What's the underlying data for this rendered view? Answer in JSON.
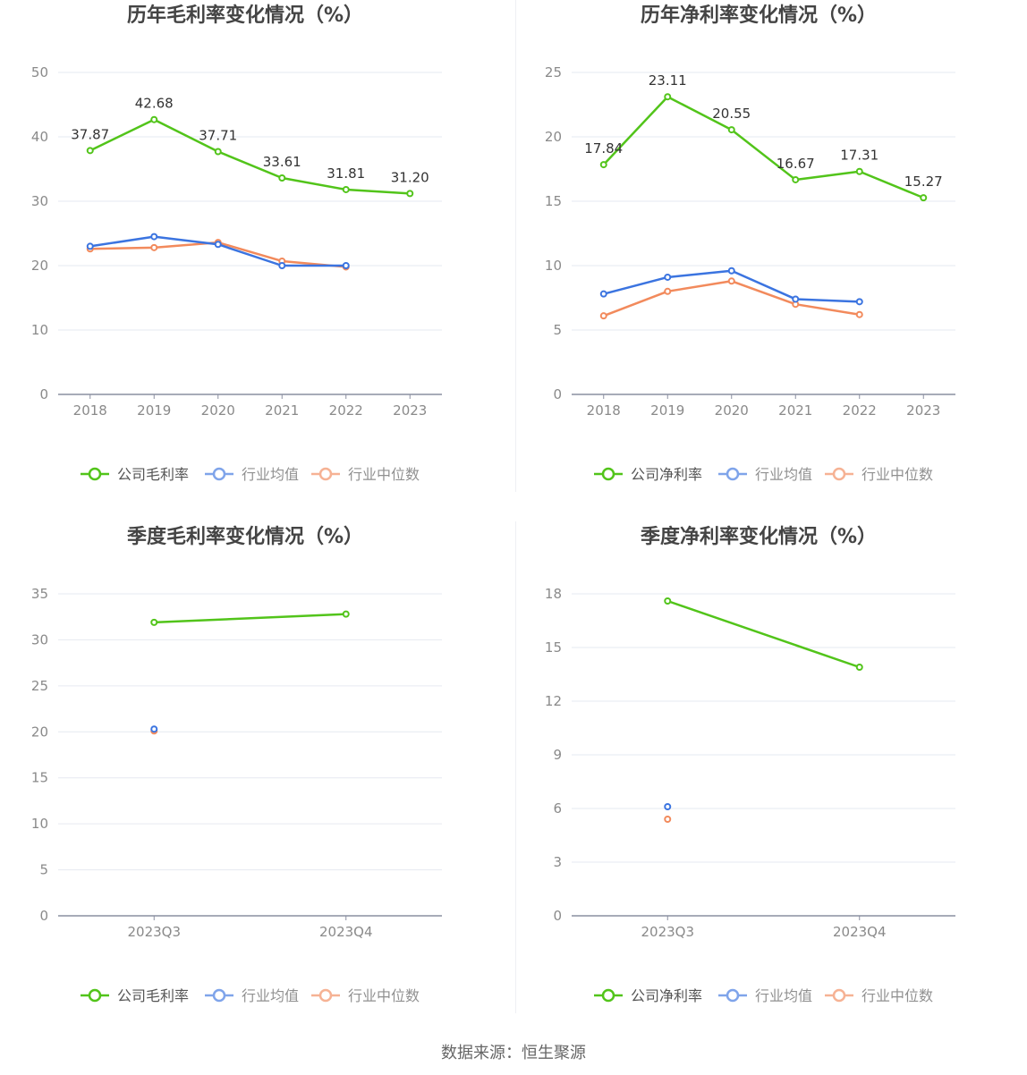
{
  "legend_avg": "行业均值",
  "legend_median": "行业中位数",
  "source_text": "数据来源：恒生聚源",
  "colors": {
    "company": "#52c41a",
    "avg": "#3b74e0",
    "median": "#f28a5c",
    "grid": "#e6e9f0",
    "axis": "#8a8fa0"
  },
  "chart_data": [
    {
      "type": "line",
      "title": "历年毛利率变化情况（%）",
      "legend_company": "公司毛利率",
      "categories": [
        "2018",
        "2019",
        "2020",
        "2021",
        "2022",
        "2023"
      ],
      "ylim": [
        0,
        50
      ],
      "yticks": [
        "0",
        "10",
        "20",
        "30",
        "40",
        "50"
      ],
      "series": [
        {
          "name": "公司毛利率",
          "key": "company",
          "values": [
            37.87,
            42.68,
            37.71,
            33.61,
            31.81,
            31.2
          ],
          "labels": [
            "37.87",
            "42.68",
            "37.71",
            "33.61",
            "31.81",
            "31.20"
          ]
        },
        {
          "name": "行业均值",
          "key": "avg",
          "values": [
            23.0,
            24.5,
            23.3,
            20.0,
            20.0,
            null
          ]
        },
        {
          "name": "行业中位数",
          "key": "median",
          "values": [
            22.6,
            22.8,
            23.6,
            20.7,
            19.8,
            null
          ]
        }
      ]
    },
    {
      "type": "line",
      "title": "历年净利率变化情况（%）",
      "legend_company": "公司净利率",
      "categories": [
        "2018",
        "2019",
        "2020",
        "2021",
        "2022",
        "2023"
      ],
      "ylim": [
        0,
        25
      ],
      "yticks": [
        "0",
        "5",
        "10",
        "15",
        "20",
        "25"
      ],
      "series": [
        {
          "name": "公司净利率",
          "key": "company",
          "values": [
            17.84,
            23.11,
            20.55,
            16.67,
            17.31,
            15.27
          ],
          "labels": [
            "17.84",
            "23.11",
            "20.55",
            "16.67",
            "17.31",
            "15.27"
          ]
        },
        {
          "name": "行业均值",
          "key": "avg",
          "values": [
            7.8,
            9.1,
            9.6,
            7.4,
            7.2,
            null
          ]
        },
        {
          "name": "行业中位数",
          "key": "median",
          "values": [
            6.1,
            8.0,
            8.8,
            7.0,
            6.2,
            null
          ]
        }
      ]
    },
    {
      "type": "line",
      "title": "季度毛利率变化情况（%）",
      "legend_company": "公司毛利率",
      "categories": [
        "2023Q3",
        "2023Q4"
      ],
      "ylim": [
        0,
        35
      ],
      "yticks": [
        "0",
        "5",
        "10",
        "15",
        "20",
        "25",
        "30",
        "35"
      ],
      "series": [
        {
          "name": "公司毛利率",
          "key": "company",
          "values": [
            31.9,
            32.8
          ]
        },
        {
          "name": "行业均值",
          "key": "avg",
          "values": [
            20.3,
            null
          ]
        },
        {
          "name": "行业中位数",
          "key": "median",
          "values": [
            20.1,
            null
          ]
        }
      ]
    },
    {
      "type": "line",
      "title": "季度净利率变化情况（%）",
      "legend_company": "公司净利率",
      "categories": [
        "2023Q3",
        "2023Q4"
      ],
      "ylim": [
        0,
        18
      ],
      "yticks": [
        "0",
        "3",
        "6",
        "9",
        "12",
        "15",
        "18"
      ],
      "series": [
        {
          "name": "公司净利率",
          "key": "company",
          "values": [
            17.6,
            13.9
          ]
        },
        {
          "name": "行业均值",
          "key": "avg",
          "values": [
            6.1,
            null
          ]
        },
        {
          "name": "行业中位数",
          "key": "median",
          "values": [
            5.4,
            null
          ]
        }
      ]
    }
  ]
}
